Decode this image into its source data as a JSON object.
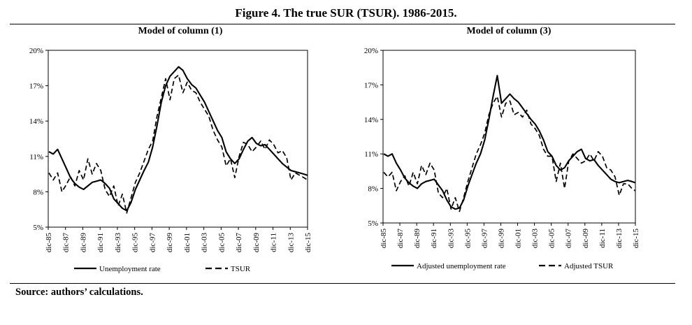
{
  "figure": {
    "title": "Figure 4. The true SUR (TSUR). 1986-2015.",
    "source": "Source: authors’ calculations."
  },
  "chart_data": [
    {
      "type": "line",
      "title": "Model of column (1)",
      "ylim": [
        5,
        20
      ],
      "yticks": [
        "5%",
        "8%",
        "11%",
        "14%",
        "17%",
        "20%"
      ],
      "xlim": [
        1985.917,
        2015.917
      ],
      "xticks": [
        "dic-85",
        "dic-87",
        "dic-89",
        "dic-91",
        "dic-93",
        "dic-95",
        "dic-97",
        "dic-99",
        "dic-01",
        "dic-03",
        "dic-05",
        "dic-07",
        "dic-09",
        "dic-11",
        "dic-13",
        "dic-15"
      ],
      "grid": false,
      "legend_position": "bottom",
      "series": [
        {
          "name": "Unemployment rate",
          "style": "solid",
          "x": [
            1986.0,
            1986.5,
            1987.0,
            1987.5,
            1988.0,
            1988.5,
            1989.0,
            1989.5,
            1990.0,
            1990.5,
            1991.0,
            1991.5,
            1992.0,
            1992.5,
            1993.0,
            1993.5,
            1994.0,
            1994.5,
            1995.0,
            1995.5,
            1996.0,
            1996.5,
            1997.0,
            1997.5,
            1998.0,
            1998.5,
            1999.0,
            1999.5,
            2000.0,
            2000.5,
            2001.0,
            2001.5,
            2002.0,
            2002.5,
            2003.0,
            2003.5,
            2004.0,
            2004.5,
            2005.0,
            2005.5,
            2006.0,
            2006.5,
            2007.0,
            2007.5,
            2008.0,
            2008.5,
            2009.0,
            2009.5,
            2010.0,
            2010.5,
            2011.0,
            2011.5,
            2012.0,
            2012.5,
            2013.0,
            2013.5,
            2014.0,
            2014.5,
            2015.0,
            2015.5,
            2015.9
          ],
          "values": [
            11.4,
            11.2,
            11.6,
            10.8,
            10.0,
            9.2,
            8.7,
            8.4,
            8.2,
            8.5,
            8.8,
            8.9,
            9.0,
            8.7,
            8.3,
            7.4,
            7.0,
            6.6,
            6.4,
            7.1,
            8.2,
            9.0,
            9.8,
            10.5,
            11.8,
            13.6,
            15.6,
            17.0,
            17.8,
            18.2,
            18.6,
            18.3,
            17.6,
            17.1,
            16.8,
            16.2,
            15.6,
            14.8,
            14.0,
            13.2,
            12.6,
            11.4,
            10.8,
            10.4,
            10.8,
            11.6,
            12.3,
            12.6,
            12.1,
            11.9,
            12.0,
            11.6,
            11.2,
            10.8,
            10.4,
            10.1,
            9.8,
            9.7,
            9.6,
            9.5,
            9.4
          ]
        },
        {
          "name": "TSUR",
          "style": "dashed",
          "x": [
            1986.0,
            1986.5,
            1987.0,
            1987.5,
            1988.0,
            1988.5,
            1989.0,
            1989.5,
            1990.0,
            1990.5,
            1991.0,
            1991.5,
            1992.0,
            1992.5,
            1993.0,
            1993.5,
            1994.0,
            1994.5,
            1995.0,
            1995.5,
            1996.0,
            1996.5,
            1997.0,
            1997.5,
            1998.0,
            1998.5,
            1999.0,
            1999.5,
            2000.0,
            2000.5,
            2001.0,
            2001.5,
            2002.0,
            2002.5,
            2003.0,
            2003.5,
            2004.0,
            2004.5,
            2005.0,
            2005.5,
            2006.0,
            2006.5,
            2007.0,
            2007.5,
            2008.0,
            2008.5,
            2009.0,
            2009.5,
            2010.0,
            2010.5,
            2011.0,
            2011.5,
            2012.0,
            2012.5,
            2013.0,
            2013.5,
            2014.0,
            2014.5,
            2015.0,
            2015.5,
            2015.9
          ],
          "values": [
            9.6,
            9.0,
            9.6,
            8.0,
            8.6,
            9.3,
            8.5,
            9.8,
            9.0,
            10.8,
            9.5,
            10.4,
            9.8,
            8.2,
            7.6,
            8.5,
            6.8,
            7.8,
            6.2,
            7.5,
            8.8,
            9.6,
            10.6,
            11.6,
            12.3,
            14.4,
            16.0,
            17.6,
            15.8,
            17.6,
            17.9,
            16.4,
            17.3,
            16.6,
            16.4,
            15.6,
            15.0,
            14.4,
            13.2,
            12.4,
            11.8,
            10.2,
            10.8,
            9.2,
            11.0,
            12.2,
            12.0,
            11.4,
            11.8,
            12.3,
            11.6,
            12.4,
            12.0,
            11.3,
            11.5,
            10.9,
            9.0,
            9.6,
            9.4,
            9.2,
            9.0
          ]
        }
      ]
    },
    {
      "type": "line",
      "title": "Model of column (3)",
      "ylim": [
        5,
        20
      ],
      "yticks": [
        "5%",
        "8%",
        "11%",
        "14%",
        "17%",
        "20%"
      ],
      "xlim": [
        1985.917,
        2015.917
      ],
      "xticks": [
        "dic-85",
        "dic-87",
        "dic-89",
        "dic-91",
        "dic-93",
        "dic-95",
        "dic-97",
        "dic-99",
        "dic-01",
        "dic-03",
        "dic-05",
        "dic-07",
        "dic-09",
        "dic-11",
        "dic-13",
        "dic-15"
      ],
      "grid": false,
      "legend_position": "bottom",
      "series": [
        {
          "name": "Adjusted unemployment rate",
          "style": "solid",
          "x": [
            1986.0,
            1986.5,
            1987.0,
            1987.5,
            1988.0,
            1988.5,
            1989.0,
            1989.5,
            1990.0,
            1990.5,
            1991.0,
            1991.5,
            1992.0,
            1992.5,
            1993.0,
            1993.5,
            1994.0,
            1994.5,
            1995.0,
            1995.5,
            1996.0,
            1996.5,
            1997.0,
            1997.5,
            1998.0,
            1998.5,
            1999.0,
            1999.5,
            2000.0,
            2000.5,
            2001.0,
            2001.5,
            2002.0,
            2002.5,
            2003.0,
            2003.5,
            2004.0,
            2004.5,
            2005.0,
            2005.5,
            2006.0,
            2006.5,
            2007.0,
            2007.5,
            2008.0,
            2008.5,
            2009.0,
            2009.5,
            2010.0,
            2010.5,
            2011.0,
            2011.5,
            2012.0,
            2012.5,
            2013.0,
            2013.5,
            2014.0,
            2014.5,
            2015.0,
            2015.5,
            2015.9
          ],
          "values": [
            11.0,
            10.8,
            11.0,
            10.2,
            9.6,
            8.9,
            8.5,
            8.2,
            8.0,
            8.4,
            8.6,
            8.7,
            8.8,
            8.3,
            7.8,
            7.0,
            6.4,
            6.2,
            6.3,
            7.0,
            8.2,
            9.2,
            10.2,
            11.0,
            12.2,
            14.0,
            16.0,
            17.8,
            15.4,
            15.8,
            16.2,
            15.8,
            15.5,
            15.0,
            14.5,
            14.0,
            13.6,
            13.0,
            12.2,
            11.2,
            10.8,
            10.0,
            9.6,
            9.8,
            10.4,
            10.8,
            11.2,
            11.4,
            10.6,
            10.4,
            10.5,
            10.0,
            9.6,
            9.2,
            8.8,
            8.6,
            8.5,
            8.6,
            8.7,
            8.6,
            8.5
          ]
        },
        {
          "name": "Adjusted TSUR",
          "style": "dashed",
          "x": [
            1986.0,
            1986.5,
            1987.0,
            1987.5,
            1988.0,
            1988.5,
            1989.0,
            1989.5,
            1990.0,
            1990.5,
            1991.0,
            1991.5,
            1992.0,
            1992.5,
            1993.0,
            1993.5,
            1994.0,
            1994.5,
            1995.0,
            1995.5,
            1996.0,
            1996.5,
            1997.0,
            1997.5,
            1998.0,
            1998.5,
            1999.0,
            1999.5,
            2000.0,
            2000.5,
            2001.0,
            2001.5,
            2002.0,
            2002.5,
            2003.0,
            2003.5,
            2004.0,
            2004.5,
            2005.0,
            2005.5,
            2006.0,
            2006.5,
            2007.0,
            2007.5,
            2008.0,
            2008.5,
            2009.0,
            2009.5,
            2010.0,
            2010.5,
            2011.0,
            2011.5,
            2012.0,
            2012.5,
            2013.0,
            2013.5,
            2014.0,
            2014.5,
            2015.0,
            2015.5,
            2015.9
          ],
          "values": [
            9.4,
            9.0,
            9.4,
            7.8,
            8.6,
            9.1,
            8.2,
            9.4,
            8.4,
            10.0,
            9.2,
            10.2,
            9.6,
            7.6,
            7.2,
            8.0,
            6.2,
            7.2,
            6.0,
            7.2,
            8.6,
            9.8,
            11.0,
            11.8,
            12.8,
            14.4,
            15.4,
            16.0,
            14.2,
            15.4,
            15.6,
            14.4,
            14.6,
            14.2,
            14.8,
            13.6,
            13.2,
            12.6,
            11.4,
            10.8,
            10.8,
            8.6,
            10.2,
            8.0,
            10.4,
            11.0,
            10.6,
            10.2,
            10.4,
            11.0,
            10.4,
            11.2,
            10.8,
            9.8,
            9.6,
            9.0,
            7.4,
            8.4,
            8.4,
            8.0,
            7.8
          ]
        }
      ]
    }
  ]
}
